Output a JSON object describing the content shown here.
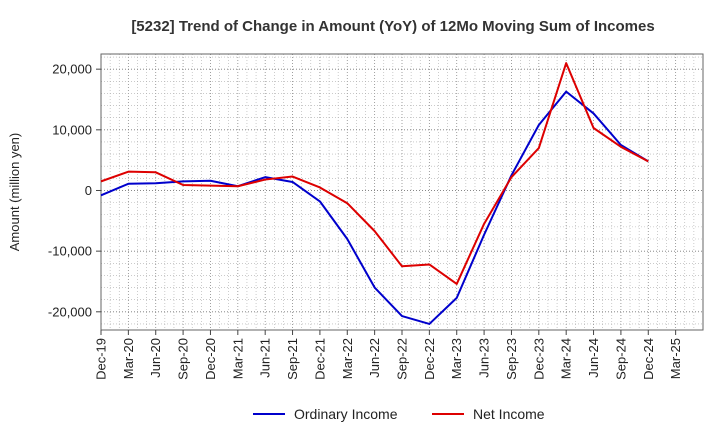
{
  "chart_data": {
    "type": "line",
    "title": "[5232]  Trend of Change in Amount (YoY) of 12Mo Moving Sum of Incomes",
    "xlabel": "",
    "ylabel": "Amount (million yen)",
    "ylim": [
      -23000,
      22500
    ],
    "yticks": [
      20000,
      10000,
      0,
      -10000,
      -20000
    ],
    "ytick_labels": [
      "20,000",
      "10,000",
      "0",
      "-10,000",
      "-20,000"
    ],
    "x_tick_labels": [
      "Dec-19",
      "Mar-20",
      "Jun-20",
      "Sep-20",
      "Dec-20",
      "Mar-21",
      "Jun-21",
      "Sep-21",
      "Dec-21",
      "Mar-22",
      "Jun-22",
      "Sep-22",
      "Dec-22",
      "Mar-23",
      "Jun-23",
      "Sep-23",
      "Dec-23",
      "Mar-24",
      "Jun-24",
      "Sep-24",
      "Dec-24",
      "Mar-25"
    ],
    "grid": true,
    "legend_position": "bottom-center",
    "series": [
      {
        "name": "Ordinary Income",
        "color": "#0000cc",
        "values": [
          -800,
          1100,
          1200,
          1500,
          1600,
          700,
          2200,
          1400,
          -1800,
          -8000,
          -16000,
          -20700,
          -22000,
          -17700,
          -7300,
          2500,
          10800,
          16300,
          12700,
          7500,
          4800
        ]
      },
      {
        "name": "Net Income",
        "color": "#dd0000",
        "values": [
          1500,
          3100,
          3000,
          900,
          800,
          700,
          1800,
          2300,
          500,
          -2100,
          -6700,
          -12500,
          -12200,
          -15400,
          -5500,
          2200,
          7000,
          21000,
          10300,
          7200,
          4800
        ]
      }
    ]
  }
}
